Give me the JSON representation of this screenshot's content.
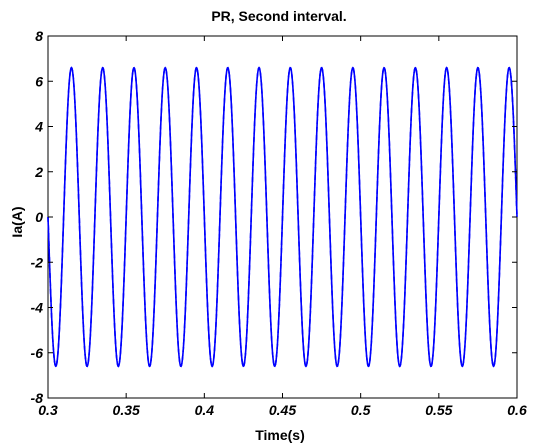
{
  "chart_data": {
    "type": "line",
    "title": "PR, Second interval.",
    "xlabel": "Time(s)",
    "ylabel": "Ia(A)",
    "xlim": [
      0.3,
      0.6
    ],
    "ylim": [
      -8,
      8
    ],
    "x_ticks": [
      0.3,
      0.35,
      0.4,
      0.45,
      0.5,
      0.55,
      0.6
    ],
    "y_ticks": [
      -8,
      -6,
      -4,
      -2,
      0,
      2,
      4,
      6,
      8
    ],
    "x_tick_labels": [
      "0.3",
      "0.35",
      "0.4",
      "0.45",
      "0.5",
      "0.55",
      "0.6"
    ],
    "y_tick_labels": [
      "-8",
      "-6",
      "-4",
      "-2",
      "0",
      "2",
      "4",
      "6",
      "8"
    ],
    "grid": false,
    "series": [
      {
        "name": "",
        "color": "#0000ff",
        "style": "solid",
        "function": "sine",
        "amplitude": 6.6,
        "frequency_hz": 50,
        "x_at_first_positive_peak": 0.315
      },
      {
        "name": "",
        "color": "#0000ff",
        "style": "dashed",
        "function": "sine",
        "amplitude": 6.6,
        "frequency_hz": 50,
        "x_at_first_positive_peak": 0.315
      }
    ]
  }
}
